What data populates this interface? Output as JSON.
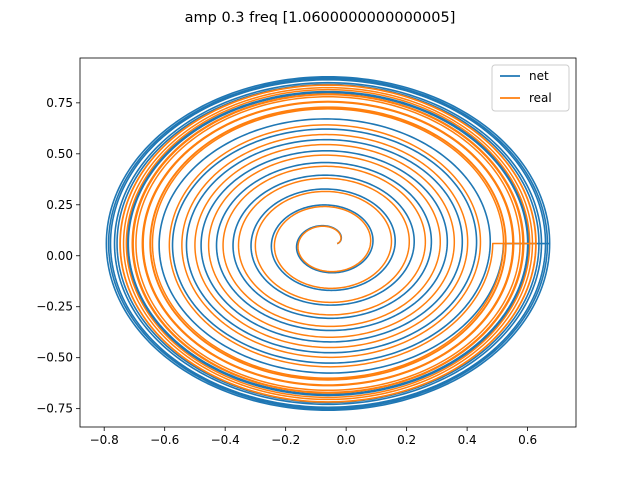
{
  "chart_data": {
    "type": "line",
    "title": "amp 0.3 freq [1.0600000000000005]",
    "xlabel": "",
    "ylabel": "",
    "xlim": [
      -0.88,
      0.76
    ],
    "ylim": [
      -0.84,
      0.97
    ],
    "xticks": [
      -0.8,
      -0.6,
      -0.4,
      -0.2,
      0.0,
      0.2,
      0.4,
      0.6
    ],
    "xtick_labels": [
      "−0.8",
      "−0.6",
      "−0.4",
      "−0.2",
      "0.0",
      "0.2",
      "0.4",
      "0.6"
    ],
    "yticks": [
      -0.75,
      -0.5,
      -0.25,
      0.0,
      0.25,
      0.5,
      0.75
    ],
    "ytick_labels": [
      "−0.75",
      "−0.50",
      "−0.25",
      "0.00",
      "0.25",
      "0.50",
      "0.75"
    ],
    "grid": false,
    "legend": "upper right",
    "series": [
      {
        "name": "net",
        "color": "#1f77b4",
        "spiral": {
          "cx": -0.06,
          "cy": 0.06,
          "rx_min": 0.03,
          "rx_max": 0.735,
          "ry_min": 0.035,
          "ry_max": 0.82,
          "turns": 9,
          "outer_bundle_count": 7,
          "outer_bundle_rx": [
            0.66,
            0.735
          ],
          "outer_bundle_ry": [
            0.74,
            0.82
          ]
        }
      },
      {
        "name": "real",
        "color": "#ff7f0e",
        "spiral": {
          "cx": -0.06,
          "cy": 0.06,
          "rx_min": 0.03,
          "rx_max": 0.69,
          "ry_min": 0.035,
          "ry_max": 0.78,
          "turns": 9,
          "outer_bundle_count": 12,
          "outer_bundle_rx": [
            0.58,
            0.69
          ],
          "outer_bundle_ry": [
            0.66,
            0.78
          ]
        }
      }
    ]
  }
}
